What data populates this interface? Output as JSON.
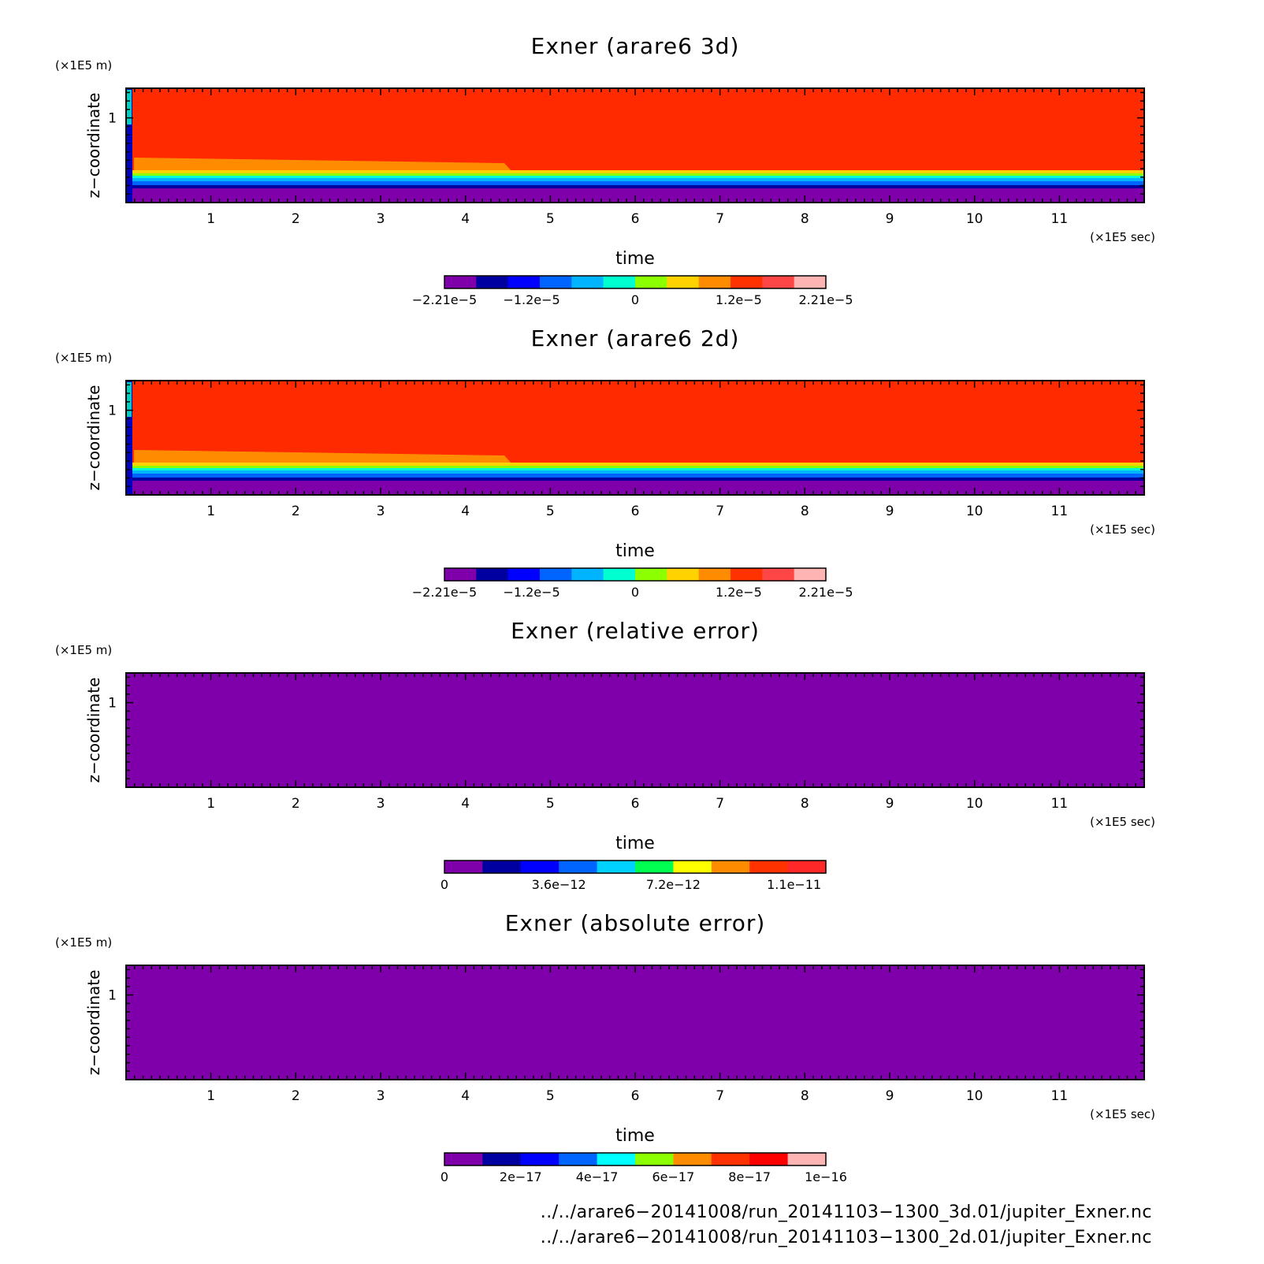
{
  "charts": [
    {
      "id": "panel-3d",
      "title": "Exner (arare6 3d)",
      "xlabel": "time",
      "x_unit": "(×1E5 sec)",
      "ylabel": "z−coordinate",
      "y_unit": "(×1E5 m)",
      "x_ticks": [
        "1",
        "2",
        "3",
        "4",
        "5",
        "6",
        "7",
        "8",
        "9",
        "10",
        "11"
      ],
      "y_ticks": [
        "1"
      ],
      "colorbar": {
        "colors": [
          "#7f00aa",
          "#0000a0",
          "#0000ff",
          "#0064ff",
          "#00b4ff",
          "#00ffd0",
          "#8cff00",
          "#ffd200",
          "#ff8c00",
          "#ff3200",
          "#ff4646",
          "#ffb4b4"
        ],
        "labels": [
          "−2.21e−5",
          "−1.2e−5",
          "0",
          "1.2e−5",
          "2.21e−5"
        ],
        "label_values": [
          -2.21e-05,
          -1.2e-05,
          0,
          1.2e-05,
          2.21e-05
        ],
        "range": [
          -2.21e-05,
          2.21e-05
        ]
      }
    },
    {
      "id": "panel-2d",
      "title": "Exner (arare6 2d)",
      "xlabel": "time",
      "x_unit": "(×1E5 sec)",
      "ylabel": "z−coordinate",
      "y_unit": "(×1E5 m)",
      "x_ticks": [
        "1",
        "2",
        "3",
        "4",
        "5",
        "6",
        "7",
        "8",
        "9",
        "10",
        "11"
      ],
      "y_ticks": [
        "1"
      ],
      "colorbar": {
        "colors": [
          "#7f00aa",
          "#0000a0",
          "#0000ff",
          "#0064ff",
          "#00b4ff",
          "#00ffd0",
          "#8cff00",
          "#ffd200",
          "#ff8c00",
          "#ff3200",
          "#ff4646",
          "#ffb4b4"
        ],
        "labels": [
          "−2.21e−5",
          "−1.2e−5",
          "0",
          "1.2e−5",
          "2.21e−5"
        ],
        "label_values": [
          -2.21e-05,
          -1.2e-05,
          0,
          1.2e-05,
          2.21e-05
        ],
        "range": [
          -2.21e-05,
          2.21e-05
        ]
      }
    },
    {
      "id": "panel-relative-error",
      "title": "Exner (relative error)",
      "xlabel": "time",
      "x_unit": "(×1E5 sec)",
      "ylabel": "z−coordinate",
      "y_unit": "(×1E5 m)",
      "x_ticks": [
        "1",
        "2",
        "3",
        "4",
        "5",
        "6",
        "7",
        "8",
        "9",
        "10",
        "11"
      ],
      "y_ticks": [
        "1"
      ],
      "colorbar": {
        "colors": [
          "#7f00aa",
          "#0000a0",
          "#0000ff",
          "#0064ff",
          "#00d2ff",
          "#00ff50",
          "#ffff00",
          "#ff8c00",
          "#ff3200",
          "#ff2828"
        ],
        "labels": [
          "0",
          "3.6e−12",
          "7.2e−12",
          "1.1e−11"
        ],
        "label_values": [
          0,
          3.6e-12,
          7.2e-12,
          1.1e-11
        ],
        "range": [
          0,
          1.2e-11
        ]
      }
    },
    {
      "id": "panel-absolute-error",
      "title": "Exner (absolute error)",
      "xlabel": "time",
      "x_unit": "(×1E5 sec)",
      "ylabel": "z−coordinate",
      "y_unit": "(×1E5 m)",
      "x_ticks": [
        "1",
        "2",
        "3",
        "4",
        "5",
        "6",
        "7",
        "8",
        "9",
        "10",
        "11"
      ],
      "y_ticks": [
        "1"
      ],
      "colorbar": {
        "colors": [
          "#7f00aa",
          "#0000a0",
          "#0000ff",
          "#0064ff",
          "#00ffff",
          "#8cff00",
          "#ff8c00",
          "#ff3200",
          "#ff0000",
          "#ffb4b4"
        ],
        "labels": [
          "0",
          "2e−17",
          "4e−17",
          "6e−17",
          "8e−17",
          "1e−16"
        ],
        "label_values": [
          0,
          2e-17,
          4e-17,
          6e-17,
          8e-17,
          1e-16
        ],
        "range": [
          0,
          1e-16
        ]
      }
    }
  ],
  "chart_data": [
    {
      "type": "heatmap",
      "title": "Exner (arare6 3d)",
      "xlabel": "time",
      "ylabel": "z−coordinate",
      "xlim": [
        0,
        12
      ],
      "ylim": [
        0,
        1.35
      ],
      "x_unit": "×1E5 sec",
      "y_unit": "×1E5 m",
      "dominant_value_upper": 1.6e-05,
      "dominant_value_lower": -2.2e-05
    },
    {
      "type": "heatmap",
      "title": "Exner (arare6 2d)",
      "xlabel": "time",
      "ylabel": "z−coordinate",
      "xlim": [
        0,
        12
      ],
      "ylim": [
        0,
        1.35
      ],
      "x_unit": "×1E5 sec",
      "y_unit": "×1E5 m",
      "dominant_value_upper": 1.6e-05,
      "dominant_value_lower": -2.2e-05
    },
    {
      "type": "heatmap",
      "title": "Exner (relative error)",
      "xlabel": "time",
      "ylabel": "z−coordinate",
      "xlim": [
        0,
        12
      ],
      "ylim": [
        0,
        1.35
      ],
      "uniform_value": 0
    },
    {
      "type": "heatmap",
      "title": "Exner (absolute error)",
      "xlabel": "time",
      "ylabel": "z−coordinate",
      "xlim": [
        0,
        12
      ],
      "ylim": [
        0,
        1.35
      ],
      "uniform_value": 0
    }
  ],
  "footer": {
    "line1": "../../arare6−20141008/run_20141103−1300_3d.01/jupiter_Exner.nc",
    "line2": "../../arare6−20141008/run_20141103−1300_2d.01/jupiter_Exner.nc"
  }
}
